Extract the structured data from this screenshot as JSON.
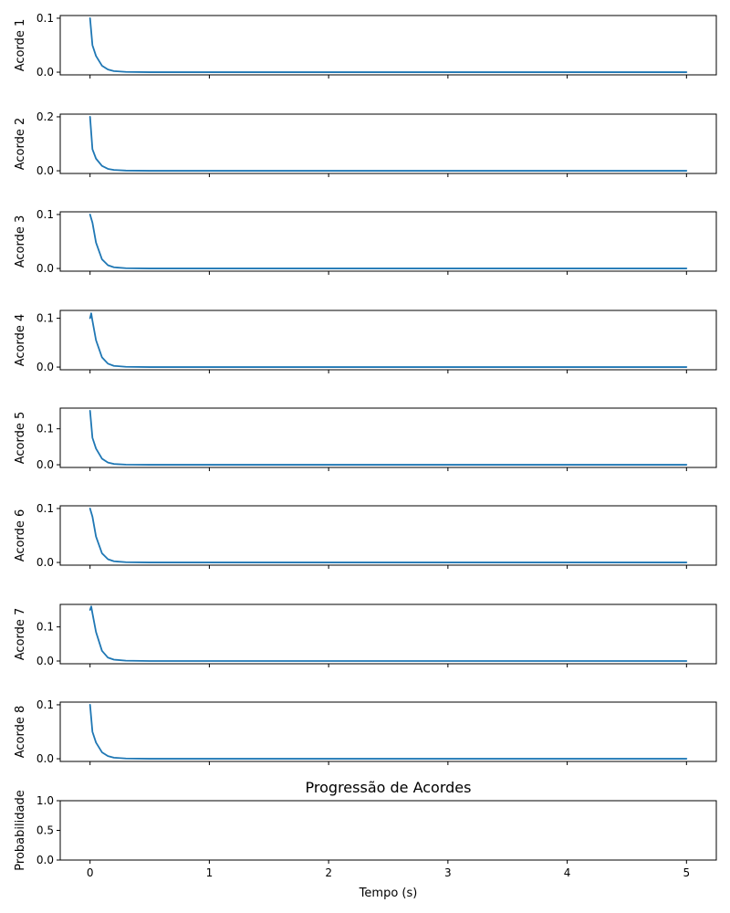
{
  "figure": {
    "title": "Progressão de Acordes",
    "xlabel": "Tempo (s)",
    "line_color": "#1f77b4"
  },
  "chart_data": [
    {
      "type": "line",
      "ylabel": "Acorde 1",
      "xlim": [
        -0.25,
        5.25
      ],
      "ylim": [
        -0.005,
        0.105
      ],
      "yticks": [
        0.0,
        0.1
      ],
      "ytick_labels": [
        "0.0",
        "0.1"
      ],
      "xticks": [
        0,
        1,
        2,
        3,
        4,
        5
      ],
      "show_xtick_labels": false,
      "series": [
        {
          "x": [
            0,
            0.02,
            0.05,
            0.1,
            0.15,
            0.2,
            0.3,
            0.5,
            5
          ],
          "y": [
            0.1,
            0.05,
            0.03,
            0.012,
            0.005,
            0.002,
            0.0005,
            0,
            0
          ]
        }
      ]
    },
    {
      "type": "line",
      "ylabel": "Acorde 2",
      "xlim": [
        -0.25,
        5.25
      ],
      "ylim": [
        -0.01,
        0.21
      ],
      "yticks": [
        0.0,
        0.2
      ],
      "ytick_labels": [
        "0.0",
        "0.2"
      ],
      "xticks": [
        0,
        1,
        2,
        3,
        4,
        5
      ],
      "show_xtick_labels": false,
      "series": [
        {
          "x": [
            0,
            0.02,
            0.05,
            0.1,
            0.15,
            0.2,
            0.3,
            0.5,
            5
          ],
          "y": [
            0.2,
            0.08,
            0.045,
            0.018,
            0.007,
            0.003,
            0.0008,
            0,
            0
          ]
        }
      ]
    },
    {
      "type": "line",
      "ylabel": "Acorde 3",
      "xlim": [
        -0.25,
        5.25
      ],
      "ylim": [
        -0.005,
        0.105
      ],
      "yticks": [
        0.0,
        0.1
      ],
      "ytick_labels": [
        "0.0",
        "0.1"
      ],
      "xticks": [
        0,
        1,
        2,
        3,
        4,
        5
      ],
      "show_xtick_labels": false,
      "series": [
        {
          "x": [
            0,
            0.02,
            0.05,
            0.1,
            0.15,
            0.2,
            0.3,
            0.5,
            5
          ],
          "y": [
            0.1,
            0.085,
            0.048,
            0.017,
            0.006,
            0.0022,
            0.0005,
            0,
            0
          ]
        }
      ]
    },
    {
      "type": "line",
      "ylabel": "Acorde 4",
      "xlim": [
        -0.25,
        5.25
      ],
      "ylim": [
        -0.0055,
        0.116
      ],
      "yticks": [
        0.0,
        0.1
      ],
      "ytick_labels": [
        "0.0",
        "0.1"
      ],
      "xticks": [
        0,
        1,
        2,
        3,
        4,
        5
      ],
      "show_xtick_labels": false,
      "series": [
        {
          "x": [
            0,
            0.01,
            0.02,
            0.05,
            0.1,
            0.15,
            0.2,
            0.3,
            0.5,
            5
          ],
          "y": [
            0.1,
            0.11,
            0.095,
            0.055,
            0.02,
            0.007,
            0.0025,
            0.0006,
            0,
            0
          ]
        }
      ]
    },
    {
      "type": "line",
      "ylabel": "Acorde 5",
      "xlim": [
        -0.25,
        5.25
      ],
      "ylim": [
        -0.0075,
        0.1575
      ],
      "yticks": [
        0.0,
        0.1
      ],
      "ytick_labels": [
        "0.0",
        "0.1"
      ],
      "xticks": [
        0,
        1,
        2,
        3,
        4,
        5
      ],
      "show_xtick_labels": false,
      "series": [
        {
          "x": [
            0,
            0.02,
            0.05,
            0.1,
            0.15,
            0.2,
            0.3,
            0.5,
            5
          ],
          "y": [
            0.15,
            0.075,
            0.045,
            0.017,
            0.006,
            0.0022,
            0.0005,
            0,
            0
          ]
        }
      ]
    },
    {
      "type": "line",
      "ylabel": "Acorde 6",
      "xlim": [
        -0.25,
        5.25
      ],
      "ylim": [
        -0.005,
        0.105
      ],
      "yticks": [
        0.0,
        0.1
      ],
      "ytick_labels": [
        "0.0",
        "0.1"
      ],
      "xticks": [
        0,
        1,
        2,
        3,
        4,
        5
      ],
      "show_xtick_labels": false,
      "series": [
        {
          "x": [
            0,
            0.02,
            0.05,
            0.1,
            0.15,
            0.2,
            0.3,
            0.5,
            5
          ],
          "y": [
            0.1,
            0.085,
            0.048,
            0.017,
            0.006,
            0.0022,
            0.0005,
            0,
            0
          ]
        }
      ]
    },
    {
      "type": "line",
      "ylabel": "Acorde 7",
      "xlim": [
        -0.25,
        5.25
      ],
      "ylim": [
        -0.008,
        0.166
      ],
      "yticks": [
        0.0,
        0.1
      ],
      "ytick_labels": [
        "0.0",
        "0.1"
      ],
      "xticks": [
        0,
        1,
        2,
        3,
        4,
        5
      ],
      "show_xtick_labels": false,
      "series": [
        {
          "x": [
            0,
            0.01,
            0.02,
            0.05,
            0.1,
            0.15,
            0.2,
            0.3,
            0.5,
            5
          ],
          "y": [
            0.15,
            0.16,
            0.14,
            0.085,
            0.03,
            0.01,
            0.004,
            0.001,
            0,
            0
          ]
        }
      ]
    },
    {
      "type": "line",
      "ylabel": "Acorde 8",
      "xlim": [
        -0.25,
        5.25
      ],
      "ylim": [
        -0.005,
        0.105
      ],
      "yticks": [
        0.0,
        0.1
      ],
      "ytick_labels": [
        "0.0",
        "0.1"
      ],
      "xticks": [
        0,
        1,
        2,
        3,
        4,
        5
      ],
      "show_xtick_labels": false,
      "series": [
        {
          "x": [
            0,
            0.02,
            0.05,
            0.1,
            0.15,
            0.2,
            0.3,
            0.5,
            5
          ],
          "y": [
            0.1,
            0.05,
            0.03,
            0.012,
            0.005,
            0.002,
            0.0005,
            0,
            0
          ]
        }
      ]
    },
    {
      "type": "line",
      "title": "Progressão de Acordes",
      "ylabel": "Probabilidade",
      "xlabel": "Tempo (s)",
      "xlim": [
        -0.25,
        5.25
      ],
      "ylim": [
        0.0,
        1.0
      ],
      "yticks": [
        0.0,
        0.5,
        1.0
      ],
      "ytick_labels": [
        "0.0",
        "0.5",
        "1.0"
      ],
      "xticks": [
        0,
        1,
        2,
        3,
        4,
        5
      ],
      "xtick_labels": [
        "0",
        "1",
        "2",
        "3",
        "4",
        "5"
      ],
      "show_xtick_labels": true,
      "series": []
    }
  ]
}
